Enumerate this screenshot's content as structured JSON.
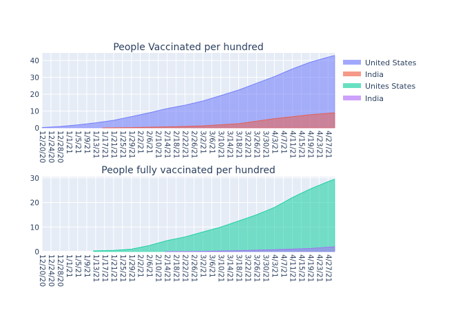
{
  "chart_data": [
    {
      "type": "area",
      "title": "People Vaccinated per hundred",
      "xlabel": "",
      "ylabel": "",
      "ylim": [
        0,
        44.5
      ],
      "yticks": [
        0,
        10,
        20,
        30,
        40
      ],
      "x_start": "12/20/20",
      "x_end": "4/30/21",
      "xticks": [
        "12/20/20",
        "12/24/20",
        "12/28/20",
        "1/1/21",
        "1/5/21",
        "1/9/21",
        "1/13/21",
        "1/17/21",
        "1/21/21",
        "1/25/21",
        "1/29/21",
        "2/2/21",
        "2/6/21",
        "2/10/21",
        "2/14/21",
        "2/18/21",
        "2/22/21",
        "2/26/21",
        "3/2/21",
        "3/6/21",
        "3/10/21",
        "3/14/21",
        "3/18/21",
        "3/22/21",
        "3/26/21",
        "3/30/21",
        "4/3/21",
        "4/7/21",
        "4/11/21",
        "4/15/21",
        "4/19/21",
        "4/23/21",
        "4/27/21"
      ],
      "grid": true,
      "series": [
        {
          "name": "United States",
          "color": "#636efa",
          "x": [
            "12/20/20",
            "12/28/20",
            "1/5/21",
            "1/13/21",
            "1/21/21",
            "1/29/21",
            "2/6/21",
            "2/14/21",
            "2/22/21",
            "3/2/21",
            "3/10/21",
            "3/18/21",
            "3/26/21",
            "4/3/21",
            "4/11/21",
            "4/19/21",
            "4/27/21",
            "4/30/21"
          ],
          "values": [
            0.2,
            0.8,
            1.8,
            3.0,
            4.5,
            6.7,
            9.0,
            11.5,
            13.5,
            16.0,
            19.2,
            22.5,
            26.5,
            30.5,
            35.0,
            39.0,
            42.0,
            43.0
          ]
        },
        {
          "name": "India",
          "color": "#ef553b",
          "x": [
            "1/16/21",
            "1/29/21",
            "2/14/21",
            "3/2/21",
            "3/18/21",
            "4/3/21",
            "4/19/21",
            "4/30/21"
          ],
          "values": [
            0.0,
            0.2,
            0.6,
            1.2,
            2.5,
            5.5,
            7.8,
            9.0
          ]
        }
      ]
    },
    {
      "type": "area",
      "title": "People fully vaccinated per hundred",
      "xlabel": "",
      "ylabel": "",
      "ylim": [
        0,
        30.5
      ],
      "yticks": [
        0,
        10,
        20,
        30
      ],
      "x_start": "12/20/20",
      "x_end": "4/30/21",
      "xticks": [
        "12/20/20",
        "12/24/20",
        "12/28/20",
        "1/1/21",
        "1/5/21",
        "1/9/21",
        "1/13/21",
        "1/17/21",
        "1/21/21",
        "1/25/21",
        "1/29/21",
        "2/2/21",
        "2/6/21",
        "2/10/21",
        "2/14/21",
        "2/18/21",
        "2/22/21",
        "2/26/21",
        "3/2/21",
        "3/6/21",
        "3/10/21",
        "3/14/21",
        "3/18/21",
        "3/22/21",
        "3/26/21",
        "3/30/21",
        "4/3/21",
        "4/7/21",
        "4/11/21",
        "4/15/21",
        "4/19/21",
        "4/23/21",
        "4/27/21"
      ],
      "grid": true,
      "series": [
        {
          "name": "Unites States",
          "color": "#00cc96",
          "x": [
            "1/12/21",
            "1/21/21",
            "1/29/21",
            "2/6/21",
            "2/14/21",
            "2/22/21",
            "3/2/21",
            "3/10/21",
            "3/18/21",
            "3/26/21",
            "4/3/21",
            "4/11/21",
            "4/19/21",
            "4/27/21",
            "4/30/21"
          ],
          "values": [
            0.3,
            0.5,
            1.0,
            2.5,
            4.5,
            6.0,
            8.0,
            10.0,
            12.5,
            15.0,
            18.0,
            22.0,
            25.5,
            28.5,
            29.5
          ]
        },
        {
          "name": "India",
          "color": "#ab63fa",
          "x": [
            "2/13/21",
            "3/2/21",
            "3/18/21",
            "4/3/21",
            "4/19/21",
            "4/30/21"
          ],
          "values": [
            0.0,
            0.1,
            0.4,
            0.8,
            1.3,
            2.0
          ]
        }
      ]
    }
  ],
  "legend": {
    "items": [
      {
        "label": "United States",
        "color": "#636efa"
      },
      {
        "label": "India",
        "color": "#ef553b"
      },
      {
        "label": "Unites States",
        "color": "#00cc96"
      },
      {
        "label": "India",
        "color": "#ab63fa"
      }
    ]
  }
}
